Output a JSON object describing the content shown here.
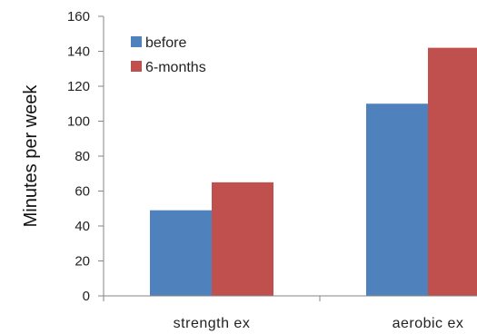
{
  "chart_data": {
    "type": "bar",
    "title": "",
    "xlabel": "",
    "ylabel": "Minutes per week",
    "categories": [
      "strength ex",
      "aerobic ex"
    ],
    "series": [
      {
        "name": "before",
        "values": [
          49,
          110
        ],
        "color": "#4f81bd"
      },
      {
        "name": "6-months",
        "values": [
          65,
          142
        ],
        "color": "#c0504d"
      }
    ],
    "ylim": [
      0,
      160
    ],
    "yticks": [
      0,
      20,
      40,
      60,
      80,
      100,
      120,
      140,
      160
    ],
    "grid": false,
    "legend_position": "top-left"
  }
}
